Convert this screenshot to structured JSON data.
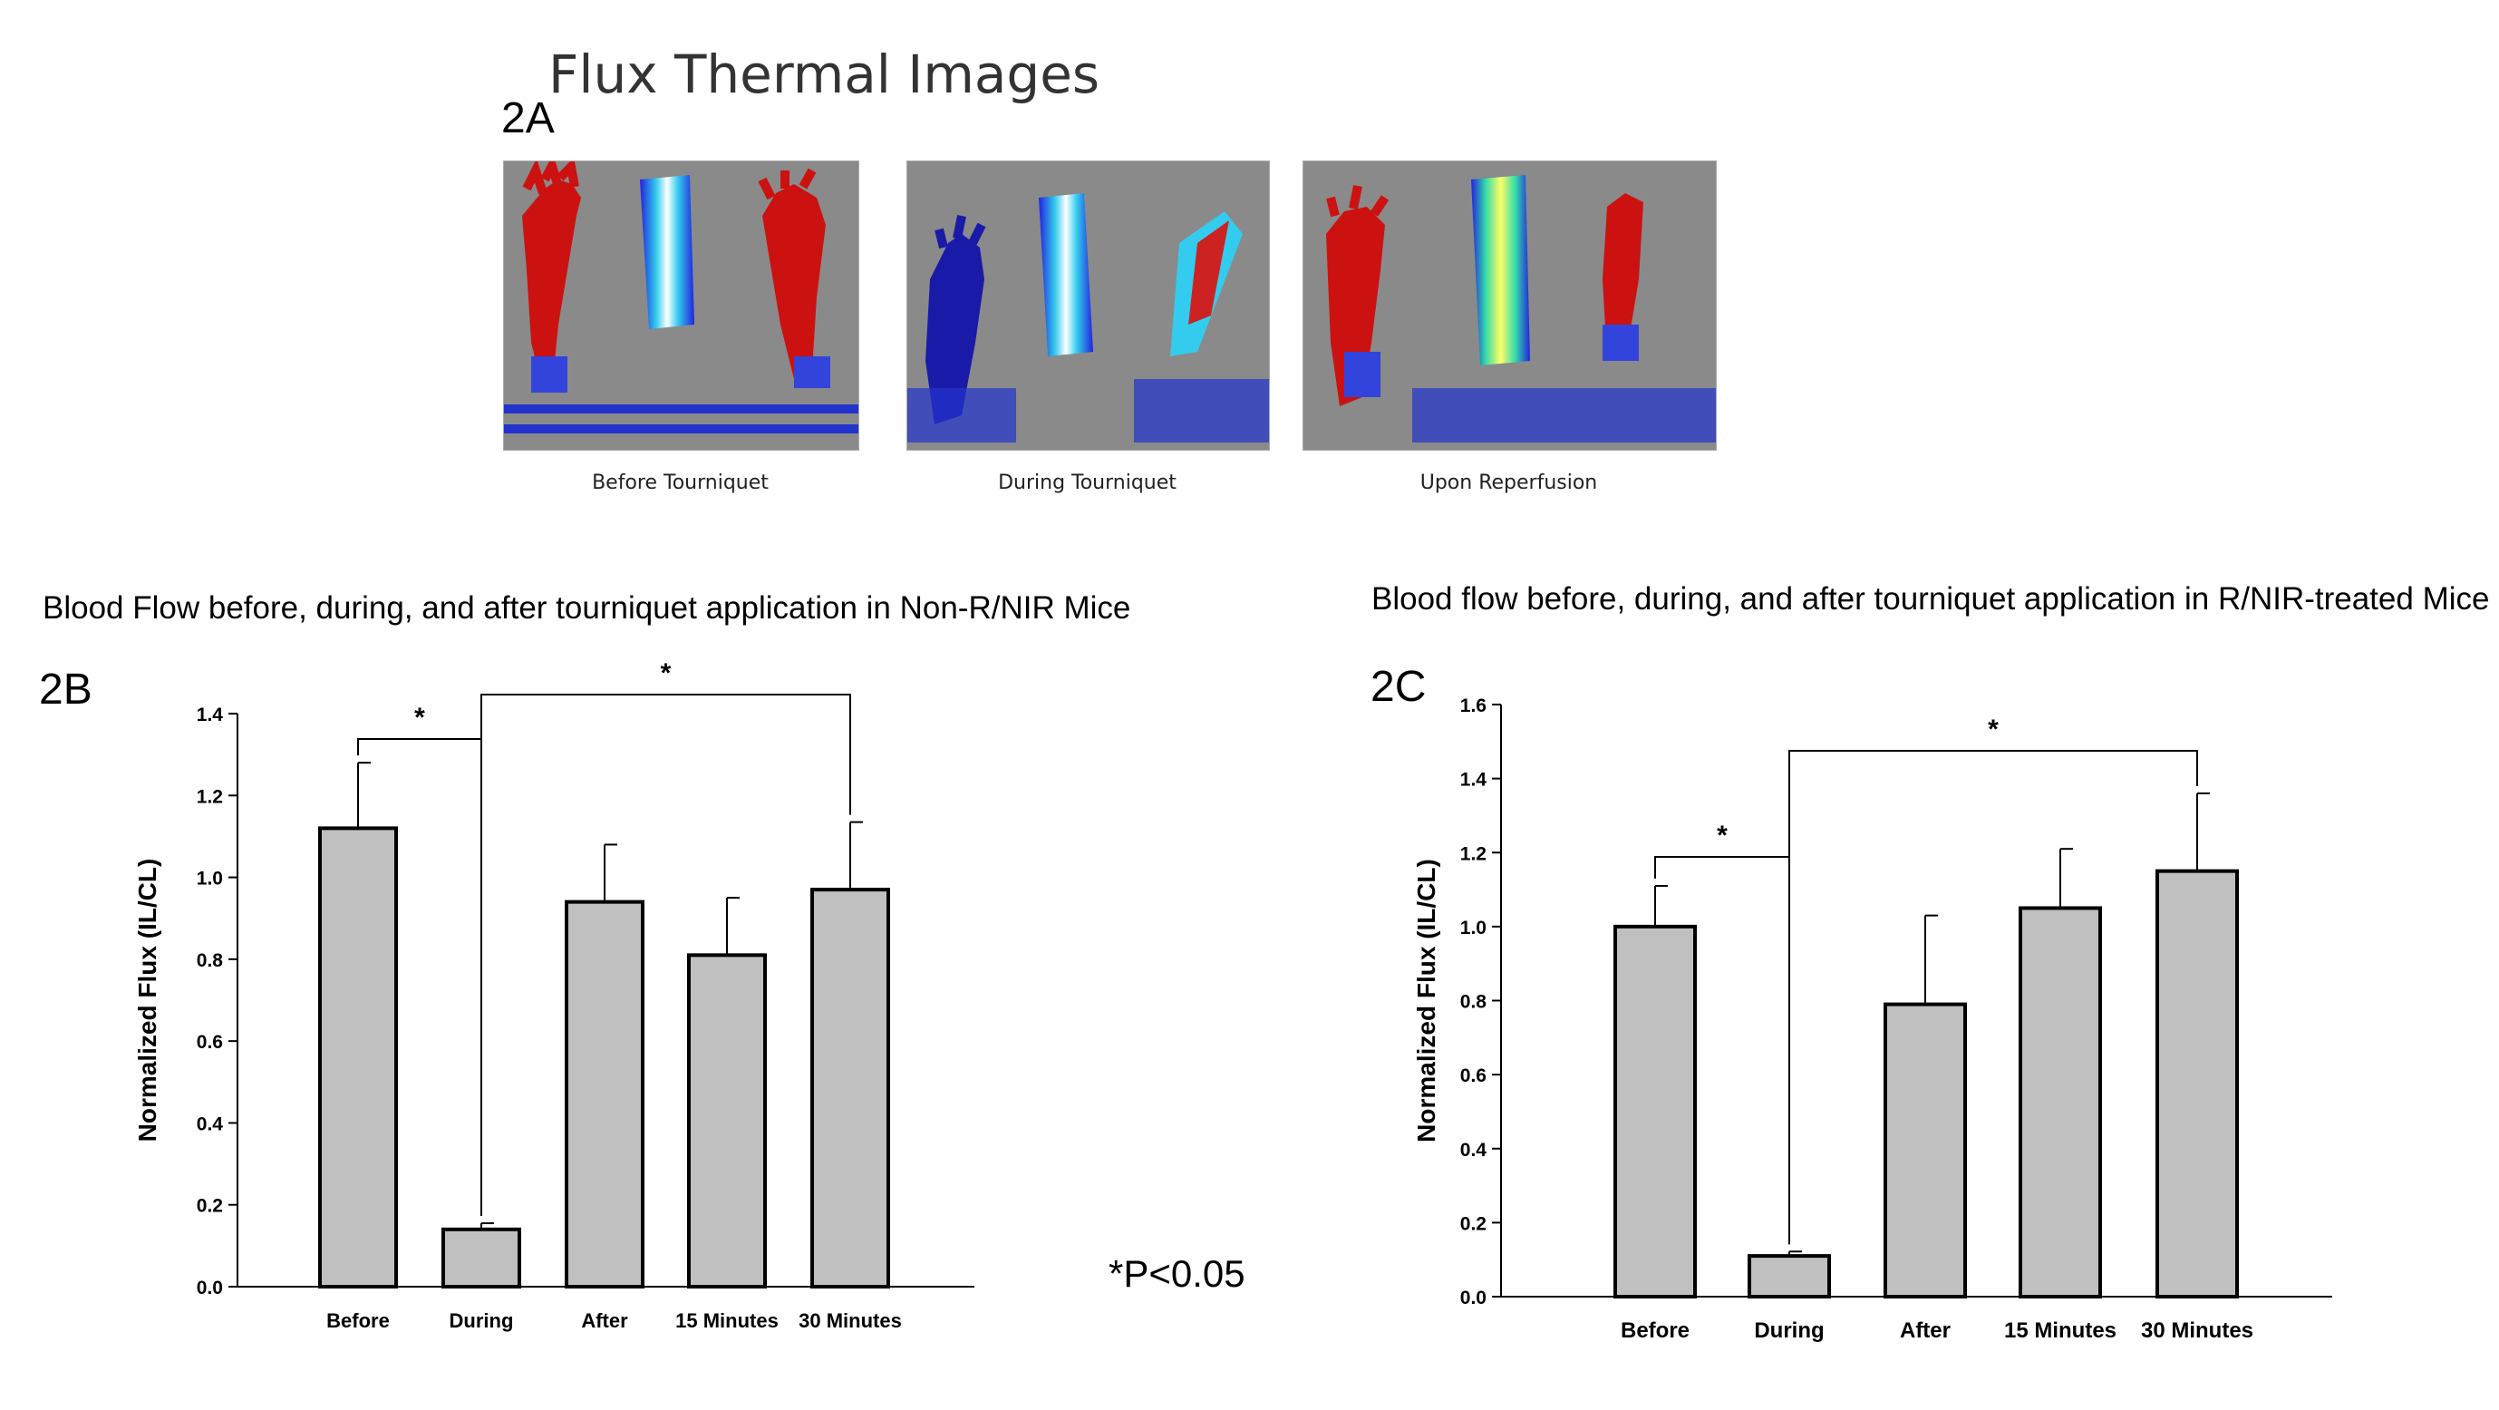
{
  "figure": {
    "heading": "Flux Thermal Images",
    "panel_2a_label": "2A",
    "panel_2b_label": "2B",
    "panel_2c_label": "2C",
    "significance_note": "*P<0.05",
    "images": [
      {
        "caption": "Before Tourniquet"
      },
      {
        "caption": "During Tourniquet"
      },
      {
        "caption": "Upon Reperfusion"
      }
    ]
  },
  "chart_data": [
    {
      "type": "bar",
      "title": "Blood Flow before, during, and after tourniquet application in Non-R/NIR Mice",
      "ylabel": "Normalized Flux (IL/CL)",
      "xlabel": "",
      "categories": [
        "Before",
        "During",
        "After",
        "15 Minutes",
        "30 Minutes"
      ],
      "values": [
        1.12,
        0.14,
        0.94,
        0.81,
        0.97
      ],
      "errors": [
        0.16,
        0.015,
        0.14,
        0.14,
        0.165
      ],
      "ylim": [
        0,
        1.4
      ],
      "yticks": [
        "0.0",
        "0.2",
        "0.4",
        "0.6",
        "0.8",
        "1.0",
        "1.2",
        "1.4"
      ],
      "bar_color": "#c0c0c0",
      "significance": [
        {
          "from": 0,
          "to": 1,
          "label": "*"
        },
        {
          "from": 1,
          "to": 4,
          "label": "*"
        }
      ]
    },
    {
      "type": "bar",
      "title": "Blood flow before, during, and after tourniquet application in R/NIR-treated Mice",
      "ylabel": "Normalized Flux (IL/CL)",
      "xlabel": "",
      "categories": [
        "Before",
        "During",
        "After",
        "15 Minutes",
        "30 Minutes"
      ],
      "values": [
        1.0,
        0.11,
        0.79,
        1.05,
        1.15
      ],
      "errors": [
        0.11,
        0.012,
        0.24,
        0.16,
        0.21
      ],
      "ylim": [
        0,
        1.6
      ],
      "yticks": [
        "0.0",
        "0.2",
        "0.4",
        "0.6",
        "0.8",
        "1.0",
        "1.2",
        "1.4",
        "1.6"
      ],
      "bar_color": "#c0c0c0",
      "significance": [
        {
          "from": 0,
          "to": 1,
          "label": "*"
        },
        {
          "from": 1,
          "to": 4,
          "label": "*"
        }
      ]
    }
  ]
}
